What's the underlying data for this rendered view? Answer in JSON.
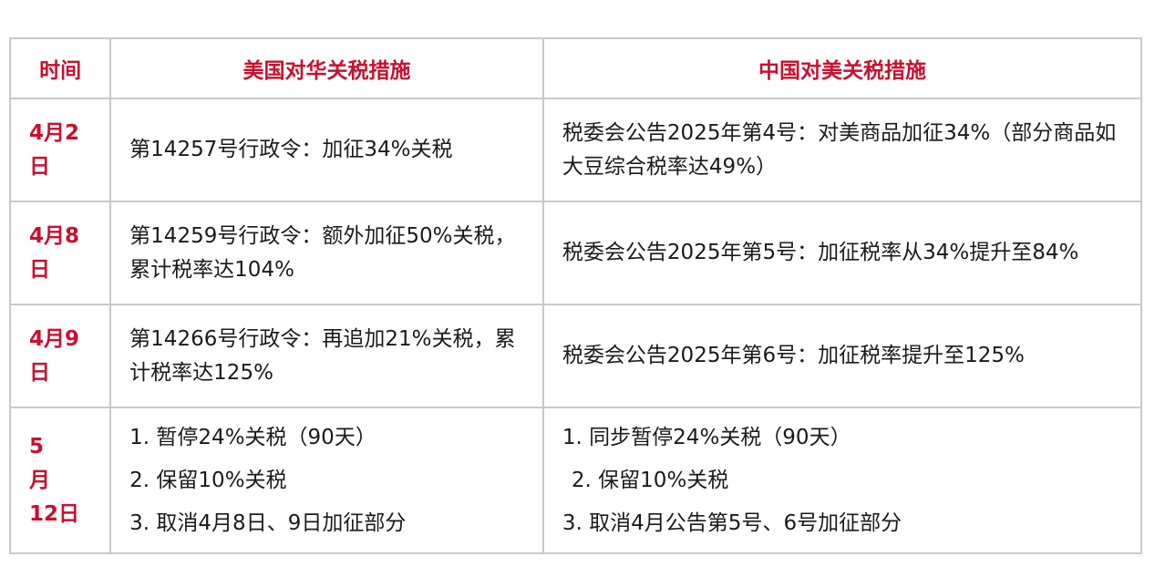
{
  "headers": {
    "date": "时间",
    "us": "美国对华关税措施",
    "cn": "中国对美关税措施"
  },
  "rows": [
    {
      "date_line1": "4月2",
      "date_line2": "日",
      "us": "第14257号行政令：加征34%关税",
      "cn": "税委会公告2025年第4号：对美商品加征34%（部分商品如大豆综合税率达49%）"
    },
    {
      "date_line1": "4月8",
      "date_line2": "日",
      "us": "第14259号行政令：额外加征50%关税，累计税率达104%",
      "cn": "税委会公告2025年第5号：加征税率从34%提升至84%"
    },
    {
      "date_line1": "4月9",
      "date_line2": "日",
      "us": "第14266号行政令：再追加21%关税，累计税率达125%",
      "cn": "税委会公告2025年第6号：加征税率提升至125%"
    }
  ],
  "last_row": {
    "date_line1": "5月",
    "date_line2": "12日",
    "us_items": [
      "1. 暂停24%关税（90天）",
      "2. 保留10%关税",
      "3. 取消4月8日、9日加征部分"
    ],
    "cn_items": [
      "1. 同步暂停24%关税（90天）",
      "2. 保留10%关税",
      "3. 取消4月公告第5号、6号加征部分"
    ]
  }
}
